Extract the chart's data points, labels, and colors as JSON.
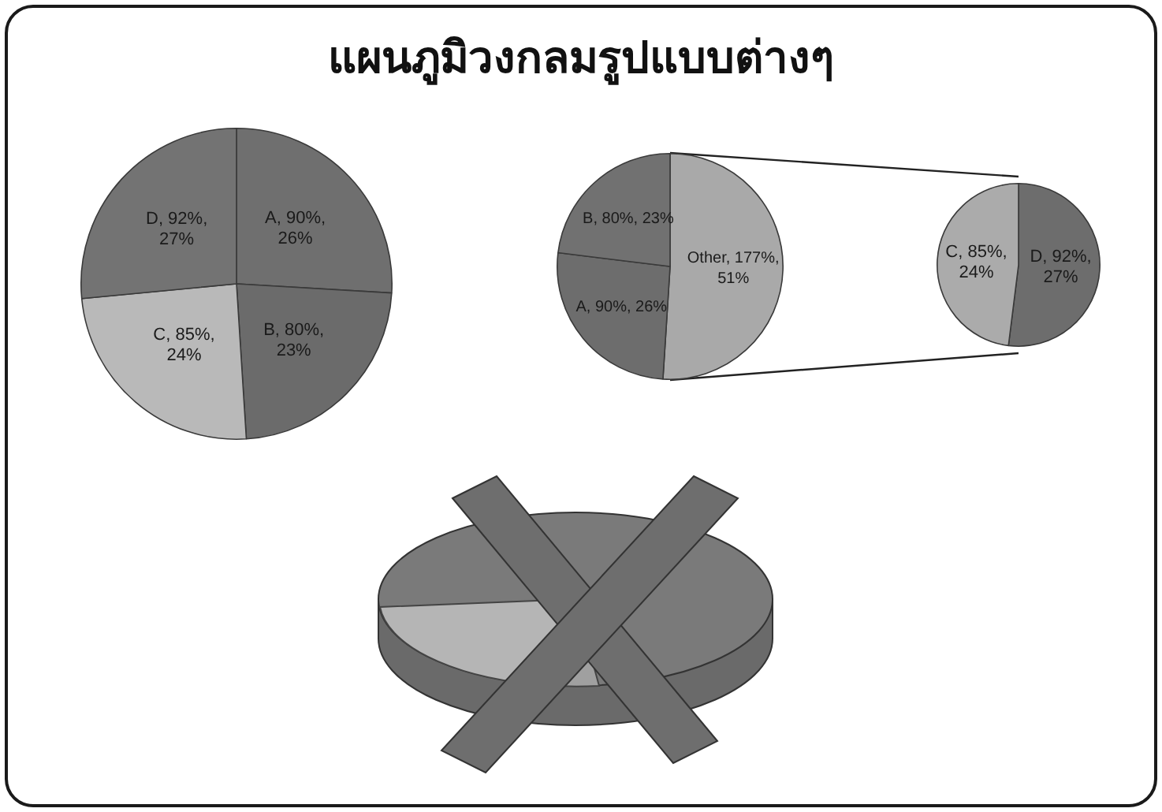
{
  "chart_data": [
    {
      "type": "other",
      "title": "แผนภูมิวงกลมรูปแบบต่างๆ"
    },
    {
      "type": "pie",
      "categories": [
        "A",
        "B",
        "C",
        "D"
      ],
      "values": [
        90,
        80,
        85,
        92
      ],
      "colors": [
        "#6f6f6f",
        "#6b6b6b",
        "#b9b9b9",
        "#737373"
      ],
      "value_labels": [
        "90%, 26%",
        "80%, 23%",
        "85%, 24%",
        "92%, 27%"
      ],
      "legend": false
    },
    {
      "type": "pie",
      "categories": [
        "Other",
        "A",
        "B"
      ],
      "values": [
        177,
        90,
        80
      ],
      "colors": [
        "#a9a9a9",
        "#6d6d6d",
        "#717171"
      ],
      "value_labels": [
        "177%, 51%",
        "90%, 26%",
        "80%, 23%"
      ],
      "legend": false
    },
    {
      "type": "pie",
      "categories": [
        "D",
        "C"
      ],
      "values": [
        92,
        85
      ],
      "colors": [
        "#6d6d6d",
        "#ababab"
      ],
      "value_labels": [
        "92%, 27%",
        "85%, 24%"
      ],
      "legend": false
    }
  ]
}
